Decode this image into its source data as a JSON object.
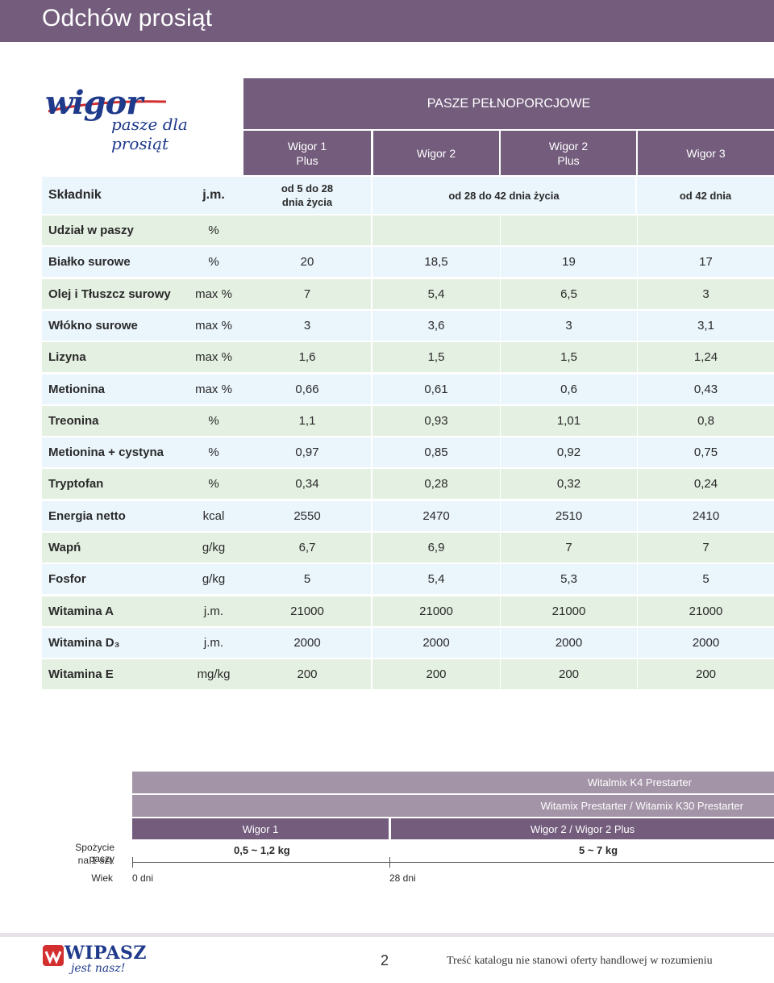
{
  "header": {
    "title": "Odchów prosiąt"
  },
  "logo": {
    "brand": "wigor",
    "tagline": "pasze dla prosiąt"
  },
  "table": {
    "group_title": "PASZE PEŁNOPORCJOWE",
    "products": [
      {
        "line1": "Wigor 1",
        "line2": "Plus"
      },
      {
        "line1": "Wigor 2",
        "line2": ""
      },
      {
        "line1": "Wigor 2",
        "line2": "Plus"
      },
      {
        "line1": "Wigor 3",
        "line2": ""
      }
    ],
    "ingredient_header": "Składnik",
    "unit_header": "j.m.",
    "periods": {
      "p1_line1": "od 5 do  28",
      "p1_line2": "dnia życia",
      "p2": "od 28 do 42 dnia życia",
      "p3": "od 42 dnia"
    },
    "rows": [
      {
        "name": "Udział w paszy",
        "unit": "%",
        "values": [
          "",
          "",
          "",
          ""
        ]
      },
      {
        "name": "Białko surowe",
        "unit": "%",
        "values": [
          "20",
          "18,5",
          "19",
          "17"
        ]
      },
      {
        "name": "Olej i Tłuszcz surowy",
        "unit": "max %",
        "values": [
          "7",
          "5,4",
          "6,5",
          "3"
        ]
      },
      {
        "name": "Włókno surowe",
        "unit": "max %",
        "values": [
          "3",
          "3,6",
          "3",
          "3,1"
        ]
      },
      {
        "name": "Lizyna",
        "unit": "max %",
        "values": [
          "1,6",
          "1,5",
          "1,5",
          "1,24"
        ]
      },
      {
        "name": "Metionina",
        "unit": "max %",
        "values": [
          "0,66",
          "0,61",
          "0,6",
          "0,43"
        ]
      },
      {
        "name": "Treonina",
        "unit": "%",
        "values": [
          "1,1",
          "0,93",
          "1,01",
          "0,8"
        ]
      },
      {
        "name": "Metionina + cystyna",
        "unit": "%",
        "values": [
          "0,97",
          "0,85",
          "0,92",
          "0,75"
        ]
      },
      {
        "name": "Tryptofan",
        "unit": "%",
        "values": [
          "0,34",
          "0,28",
          "0,32",
          "0,24"
        ]
      },
      {
        "name": "Energia netto",
        "unit": "kcal",
        "values": [
          "2550",
          "2470",
          "2510",
          "2410"
        ]
      },
      {
        "name": "Wapń",
        "unit": "g/kg",
        "values": [
          "6,7",
          "6,9",
          "7",
          "7"
        ]
      },
      {
        "name": "Fosfor",
        "unit": "g/kg",
        "values": [
          "5",
          "5,4",
          "5,3",
          "5"
        ]
      },
      {
        "name": "Witamina A",
        "unit": "j.m.",
        "values": [
          "21000",
          "21000",
          "21000",
          "21000"
        ]
      },
      {
        "name": "Witamina D₃",
        "unit": "j.m.",
        "values": [
          "2000",
          "2000",
          "2000",
          "2000"
        ]
      },
      {
        "name": "Witamina E",
        "unit": "mg/kg",
        "values": [
          "200",
          "200",
          "200",
          "200"
        ]
      }
    ]
  },
  "timeline": {
    "bar1": "Witalmix K4 Prestarter",
    "bar2": "Witamix Prestarter / Witamix K30 Prestarter",
    "bar3_left": "Wigor 1",
    "bar3_right": "Wigor 2 / Wigor 2 Plus",
    "consumption_label_line1": "Spożycie paszy",
    "consumption_label_line2": "na 1 szt.",
    "consumption_left": "0,5 ~ 1,2 kg",
    "consumption_right": "5 ~ 7 kg",
    "age_label": "Wiek",
    "age_start": "0 dni",
    "age_mid": "28 dni"
  },
  "footer": {
    "brand": "WIPASZ",
    "brand_sub": "jest nasz!",
    "page_number": "2",
    "disclaimer": "Treść katalogu nie stanowi oferty handlowej w rozumieniu"
  },
  "colors": {
    "accent": "#735c7c",
    "accent_light": "#a394a7",
    "row_blue": "#eaf5fc",
    "row_green": "#e4f0e1",
    "brand_blue": "#1f3a8a"
  }
}
